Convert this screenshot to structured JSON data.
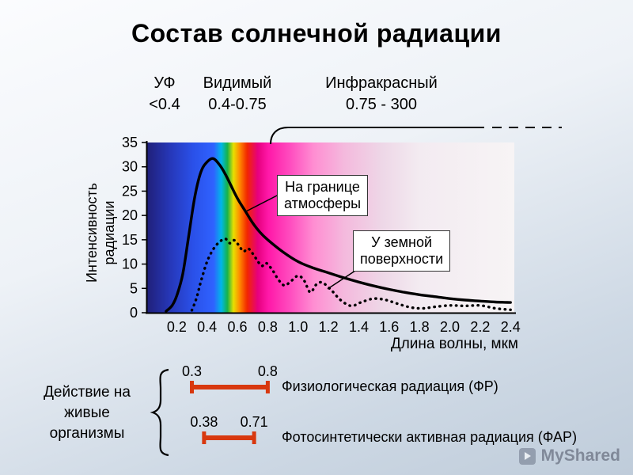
{
  "slide": {
    "title": "Состав солнечной радиации",
    "watermark_text": "MyShared"
  },
  "bands": [
    {
      "name": "УФ",
      "range": "<0.4"
    },
    {
      "name": "Видимый",
      "range": "0.4-0.75"
    },
    {
      "name": "Инфракрасный",
      "range": "0.75 - 300"
    }
  ],
  "chart_data": {
    "type": "line",
    "title": "Состав солнечной радиации",
    "xlabel": "Длина волны, мкм",
    "ylabel": "Интенсивность радиации",
    "ylabel_lines": [
      "Интенсивность",
      "радиации"
    ],
    "x_tick_labels": [
      "0.2",
      "0.4",
      "0.6",
      "0.8",
      "1.0",
      "1.2",
      "1.4",
      "1.6",
      "1.8",
      "2.0",
      "2.2",
      "2.4"
    ],
    "y_ticks": [
      0,
      5,
      10,
      15,
      20,
      25,
      30,
      35
    ],
    "xlim": [
      0,
      2.425
    ],
    "ylim": [
      0,
      35
    ],
    "grid": false,
    "legend_position": "annotations-on-plot",
    "series": [
      {
        "name": "На границе атмосферы",
        "label_lines": [
          "На границе",
          "атмосферы"
        ],
        "style": "solid",
        "color": "#000000",
        "points": [
          [
            0.13,
            0.3
          ],
          [
            0.17,
            1.5
          ],
          [
            0.2,
            3.5
          ],
          [
            0.24,
            8
          ],
          [
            0.28,
            16
          ],
          [
            0.32,
            24
          ],
          [
            0.36,
            29
          ],
          [
            0.4,
            31
          ],
          [
            0.44,
            31.7
          ],
          [
            0.48,
            30.5
          ],
          [
            0.52,
            28.5
          ],
          [
            0.56,
            26
          ],
          [
            0.6,
            23.5
          ],
          [
            0.65,
            21
          ],
          [
            0.7,
            18.5
          ],
          [
            0.75,
            16.5
          ],
          [
            0.8,
            15
          ],
          [
            0.9,
            12.5
          ],
          [
            1.0,
            10.5
          ],
          [
            1.1,
            9.2
          ],
          [
            1.2,
            8.2
          ],
          [
            1.3,
            7.2
          ],
          [
            1.4,
            6.3
          ],
          [
            1.5,
            5.5
          ],
          [
            1.6,
            4.8
          ],
          [
            1.7,
            4.2
          ],
          [
            1.8,
            3.7
          ],
          [
            1.9,
            3.3
          ],
          [
            2.0,
            2.9
          ],
          [
            2.1,
            2.6
          ],
          [
            2.2,
            2.4
          ],
          [
            2.3,
            2.2
          ],
          [
            2.4,
            2.1
          ]
        ]
      },
      {
        "name": "У земной поверхности",
        "label_lines": [
          "У земной",
          "поверхности"
        ],
        "style": "dotted",
        "color": "#000000",
        "points": [
          [
            0.3,
            0.5
          ],
          [
            0.33,
            3
          ],
          [
            0.36,
            6.5
          ],
          [
            0.4,
            10.5
          ],
          [
            0.44,
            13
          ],
          [
            0.48,
            14.5
          ],
          [
            0.52,
            15.2
          ],
          [
            0.55,
            14.3
          ],
          [
            0.58,
            14.9
          ],
          [
            0.61,
            13.8
          ],
          [
            0.64,
            12.6
          ],
          [
            0.67,
            13.2
          ],
          [
            0.7,
            12.2
          ],
          [
            0.73,
            10.8
          ],
          [
            0.76,
            9.6
          ],
          [
            0.79,
            10.2
          ],
          [
            0.83,
            8.8
          ],
          [
            0.87,
            6.8
          ],
          [
            0.91,
            5.6
          ],
          [
            0.95,
            6.4
          ],
          [
            1.0,
            7.6
          ],
          [
            1.04,
            6.6
          ],
          [
            1.08,
            4.2
          ],
          [
            1.12,
            5.8
          ],
          [
            1.16,
            6.2
          ],
          [
            1.22,
            4.6
          ],
          [
            1.28,
            2.6
          ],
          [
            1.35,
            1.4
          ],
          [
            1.42,
            2.2
          ],
          [
            1.5,
            2.9
          ],
          [
            1.58,
            2.6
          ],
          [
            1.66,
            1.8
          ],
          [
            1.74,
            1.1
          ],
          [
            1.82,
            0.9
          ],
          [
            1.9,
            1.2
          ],
          [
            2.0,
            1.5
          ],
          [
            2.1,
            1.4
          ],
          [
            2.2,
            1.5
          ],
          [
            2.3,
            0.9
          ],
          [
            2.4,
            0.6
          ]
        ]
      }
    ],
    "spectrum_stops": [
      [
        0.0,
        "#20207a"
      ],
      [
        0.15,
        "#2637b8"
      ],
      [
        0.3,
        "#2a50e8"
      ],
      [
        0.44,
        "#2f62ff"
      ],
      [
        0.49,
        "#00b7e8"
      ],
      [
        0.53,
        "#17b34a"
      ],
      [
        0.57,
        "#e8e000"
      ],
      [
        0.61,
        "#ff8c00"
      ],
      [
        0.66,
        "#f22700"
      ],
      [
        0.73,
        "#e6007e"
      ],
      [
        0.8,
        "#ff18a8"
      ],
      [
        0.95,
        "#ff4fc0"
      ],
      [
        1.1,
        "#ff8ed2"
      ],
      [
        1.3,
        "#f4b9dd"
      ],
      [
        1.55,
        "#eed7e7"
      ],
      [
        1.8,
        "#f3ebf1"
      ],
      [
        2.425,
        "#f7f4f5"
      ]
    ],
    "ranges": [
      {
        "from": 0.3,
        "to": 0.8,
        "from_label": "0.3",
        "to_label": "0.8",
        "label": "Физиологическая радиация (ФР)",
        "color": "#d8380f"
      },
      {
        "from": 0.38,
        "to": 0.71,
        "from_label": "0.38",
        "to_label": "0.71",
        "label": "Фотосинтетически активная радиация (ФАР)",
        "color": "#d8380f"
      }
    ],
    "left_caption_lines": [
      "Действие на",
      "живые",
      "организмы"
    ]
  }
}
